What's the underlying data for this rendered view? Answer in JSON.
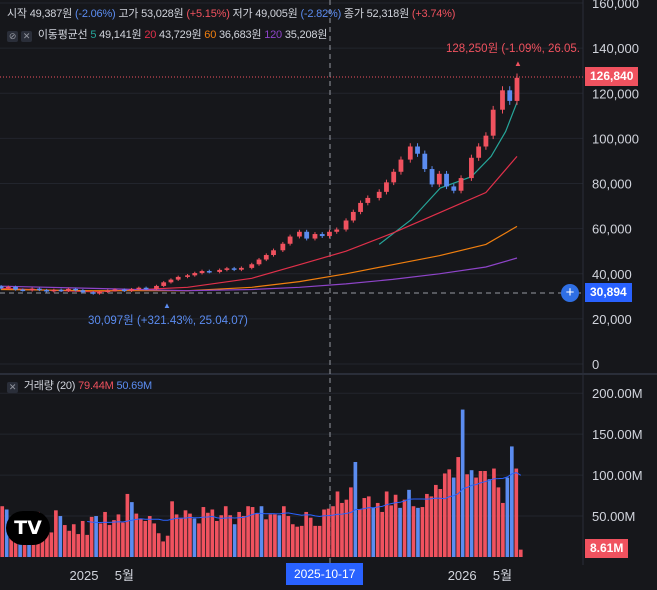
{
  "header": {
    "open_label": "시작",
    "open_value": "49,387원",
    "open_change": "(-2.06%)",
    "high_label": "고가",
    "high_value": "53,028원",
    "high_change": "(+5.15%)",
    "low_label": "저가",
    "low_value": "49,005원",
    "low_change": "(-2.82%)",
    "close_label": "종가",
    "close_value": "52,318원",
    "close_change": "(+3.74%)"
  },
  "ma_legend": {
    "label": "이동평균선",
    "p5": "5",
    "v5": "49,141원",
    "p20": "20",
    "v20": "43,729원",
    "p60": "60",
    "v60": "36,683원",
    "p120": "120",
    "v120": "35,208원"
  },
  "volume_legend": {
    "label": "거래량 (20)",
    "v1": "79.44M",
    "v2": "50.69M"
  },
  "annotations": {
    "high": "128,250원 (-1.09%, 26.05.",
    "low": "30,097원 (+321.43%, 25.04.07)"
  },
  "price_tag": "126,840",
  "crosshair_price": "30,894",
  "volume_tag": "8.61M",
  "crosshair_date": "2025-10-17",
  "logo": "TV",
  "colors": {
    "up": "#f0525f",
    "down": "#5b8cf0",
    "ma5": "#26a69a",
    "ma20": "#e0304a",
    "ma60": "#f07f0f",
    "ma120": "#8e44c9"
  },
  "chart_data": [
    {
      "type": "line",
      "title": "",
      "price_axis_ticks": [
        "0",
        "20,000",
        "40,000",
        "60,000",
        "80,000",
        "100,000",
        "120,000",
        "140,000",
        "160,000"
      ],
      "ylim": [
        0,
        160000
      ],
      "time_axis_ticks": [
        "2025",
        "5월",
        "2026",
        "5월"
      ],
      "series": [
        {
          "name": "이동평균선 5",
          "color": "#26a69a",
          "x": [
            "2026-01-02",
            "2026-02-02",
            "2026-03-02",
            "2026-04-01",
            "2026-04-20",
            "2026-05-04",
            "2026-05-15"
          ],
          "y": [
            53000,
            64000,
            78000,
            83000,
            92000,
            103000,
            116000
          ]
        },
        {
          "name": "이동평균선 20",
          "color": "#e0304a",
          "x": [
            "2025-01-02",
            "2025-04-01",
            "2025-07-01",
            "2025-09-01",
            "2025-10-17",
            "2025-12-01",
            "2026-01-15",
            "2026-03-01",
            "2026-04-15",
            "2026-05-15"
          ],
          "y": [
            33500,
            32000,
            34000,
            38000,
            44000,
            50000,
            58000,
            67000,
            76000,
            92000
          ]
        },
        {
          "name": "이동평균선 60",
          "color": "#f07f0f",
          "x": [
            "2025-01-02",
            "2025-04-01",
            "2025-07-01",
            "2025-09-01",
            "2025-10-17",
            "2025-12-01",
            "2026-01-15",
            "2026-03-01",
            "2026-04-15",
            "2026-05-15"
          ],
          "y": [
            33000,
            32500,
            32500,
            34000,
            36500,
            40000,
            44000,
            48000,
            53000,
            61000
          ]
        },
        {
          "name": "이동평균선 120",
          "color": "#8e44c9",
          "x": [
            "2025-01-02",
            "2025-04-01",
            "2025-07-01",
            "2025-09-01",
            "2025-10-17",
            "2025-12-01",
            "2026-01-15",
            "2026-03-01",
            "2026-04-15",
            "2026-05-15"
          ],
          "y": [
            34500,
            33500,
            32500,
            33000,
            34000,
            35500,
            37500,
            40000,
            43000,
            47000
          ]
        }
      ],
      "candles": [
        {
          "d": "2025-01-02",
          "o": 34500,
          "c": 33500
        },
        {
          "d": "2025-01-09",
          "o": 33500,
          "c": 34200
        },
        {
          "d": "2025-01-16",
          "o": 34200,
          "c": 33000
        },
        {
          "d": "2025-01-23",
          "o": 33000,
          "c": 32600
        },
        {
          "d": "2025-02-01",
          "o": 32600,
          "c": 33400
        },
        {
          "d": "2025-02-08",
          "o": 33400,
          "c": 32800
        },
        {
          "d": "2025-02-15",
          "o": 32800,
          "c": 32200
        },
        {
          "d": "2025-02-22",
          "o": 32200,
          "c": 32900
        },
        {
          "d": "2025-03-01",
          "o": 32900,
          "c": 32400
        },
        {
          "d": "2025-03-08",
          "o": 32400,
          "c": 33300
        },
        {
          "d": "2025-03-15",
          "o": 33300,
          "c": 32700
        },
        {
          "d": "2025-03-22",
          "o": 32700,
          "c": 31800
        },
        {
          "d": "2025-04-01",
          "o": 31800,
          "c": 31200
        },
        {
          "d": "2025-04-07",
          "o": 31200,
          "c": 31900
        },
        {
          "d": "2025-04-15",
          "o": 31900,
          "c": 32600
        },
        {
          "d": "2025-04-22",
          "o": 32600,
          "c": 33000
        },
        {
          "d": "2025-05-01",
          "o": 33000,
          "c": 32400
        },
        {
          "d": "2025-05-08",
          "o": 32400,
          "c": 33200
        },
        {
          "d": "2025-05-15",
          "o": 33200,
          "c": 33800
        },
        {
          "d": "2025-05-22",
          "o": 33800,
          "c": 33300
        },
        {
          "d": "2025-06-01",
          "o": 33300,
          "c": 34600
        },
        {
          "d": "2025-06-08",
          "o": 34600,
          "c": 36200
        },
        {
          "d": "2025-06-15",
          "o": 36200,
          "c": 37400
        },
        {
          "d": "2025-06-22",
          "o": 37400,
          "c": 38600
        },
        {
          "d": "2025-07-01",
          "o": 38600,
          "c": 39300
        },
        {
          "d": "2025-07-08",
          "o": 39300,
          "c": 40300
        },
        {
          "d": "2025-07-15",
          "o": 40300,
          "c": 41200
        },
        {
          "d": "2025-07-22",
          "o": 41200,
          "c": 40800
        },
        {
          "d": "2025-08-01",
          "o": 40800,
          "c": 41700
        },
        {
          "d": "2025-08-08",
          "o": 41700,
          "c": 42400
        },
        {
          "d": "2025-08-15",
          "o": 42400,
          "c": 41800
        },
        {
          "d": "2025-08-22",
          "o": 41800,
          "c": 42600
        },
        {
          "d": "2025-09-01",
          "o": 42600,
          "c": 44200
        },
        {
          "d": "2025-09-08",
          "o": 44200,
          "c": 46300
        },
        {
          "d": "2025-09-15",
          "o": 46300,
          "c": 48300
        },
        {
          "d": "2025-09-22",
          "o": 48300,
          "c": 50400
        },
        {
          "d": "2025-10-01",
          "o": 50400,
          "c": 53300
        },
        {
          "d": "2025-10-08",
          "o": 53300,
          "c": 56500
        },
        {
          "d": "2025-10-17",
          "o": 56500,
          "c": 58600
        },
        {
          "d": "2025-10-24",
          "o": 58600,
          "c": 55600
        },
        {
          "d": "2025-11-01",
          "o": 55600,
          "c": 57600
        },
        {
          "d": "2025-11-08",
          "o": 57600,
          "c": 56700
        },
        {
          "d": "2025-11-15",
          "o": 56700,
          "c": 58600
        },
        {
          "d": "2025-11-22",
          "o": 58600,
          "c": 59600
        },
        {
          "d": "2025-12-01",
          "o": 59600,
          "c": 63600
        },
        {
          "d": "2025-12-08",
          "o": 63600,
          "c": 67400
        },
        {
          "d": "2025-12-15",
          "o": 67400,
          "c": 71400
        },
        {
          "d": "2025-12-22",
          "o": 71400,
          "c": 73600
        },
        {
          "d": "2026-01-02",
          "o": 73600,
          "c": 76300
        },
        {
          "d": "2026-01-09",
          "o": 76300,
          "c": 80500
        },
        {
          "d": "2026-01-16",
          "o": 80500,
          "c": 85200
        },
        {
          "d": "2026-01-23",
          "o": 85200,
          "c": 90600
        },
        {
          "d": "2026-02-01",
          "o": 90600,
          "c": 96400
        },
        {
          "d": "2026-02-08",
          "o": 96400,
          "c": 93200
        },
        {
          "d": "2026-02-15",
          "o": 93200,
          "c": 86400
        },
        {
          "d": "2026-02-22",
          "o": 86400,
          "c": 79600
        },
        {
          "d": "2026-03-01",
          "o": 79600,
          "c": 84300
        },
        {
          "d": "2026-03-08",
          "o": 84300,
          "c": 78700
        },
        {
          "d": "2026-03-15",
          "o": 78700,
          "c": 76800
        },
        {
          "d": "2026-03-22",
          "o": 76800,
          "c": 82400
        },
        {
          "d": "2026-04-01",
          "o": 82400,
          "c": 91400
        },
        {
          "d": "2026-04-08",
          "o": 91400,
          "c": 96400
        },
        {
          "d": "2026-04-15",
          "o": 96400,
          "c": 101200
        },
        {
          "d": "2026-04-22",
          "o": 101200,
          "c": 112700
        },
        {
          "d": "2026-05-01",
          "o": 112700,
          "c": 121300
        },
        {
          "d": "2026-05-08",
          "o": 121300,
          "c": 116600
        },
        {
          "d": "2026-05-15",
          "o": 116600,
          "c": 126840
        }
      ],
      "high_marker": 128250,
      "low_marker": 30097,
      "current_price": 126840
    },
    {
      "type": "bar",
      "title": "거래량 (20)",
      "volume_axis_ticks": [
        "50.00M",
        "100.00M",
        "150.00M",
        "200.00M"
      ],
      "ylim": [
        0,
        210000000
      ],
      "volumes": [
        {
          "v": 62,
          "u": true
        },
        {
          "v": 58,
          "u": false
        },
        {
          "v": 44,
          "u": true
        },
        {
          "v": 50,
          "u": true
        },
        {
          "v": 40,
          "u": false
        },
        {
          "v": 38,
          "u": true
        },
        {
          "v": 45,
          "u": false
        },
        {
          "v": 48,
          "u": true
        },
        {
          "v": 55,
          "u": true
        },
        {
          "v": 46,
          "u": true
        },
        {
          "v": 33,
          "u": true
        },
        {
          "v": 30,
          "u": true
        },
        {
          "v": 57,
          "u": true
        },
        {
          "v": 50,
          "u": false
        },
        {
          "v": 39,
          "u": true
        },
        {
          "v": 32,
          "u": true
        },
        {
          "v": 40,
          "u": true
        },
        {
          "v": 28,
          "u": true
        },
        {
          "v": 44,
          "u": true
        },
        {
          "v": 27,
          "u": true
        },
        {
          "v": 49,
          "u": true
        },
        {
          "v": 50,
          "u": false
        },
        {
          "v": 41,
          "u": true
        },
        {
          "v": 55,
          "u": true
        },
        {
          "v": 39,
          "u": true
        },
        {
          "v": 45,
          "u": true
        },
        {
          "v": 52,
          "u": true
        },
        {
          "v": 42,
          "u": true
        },
        {
          "v": 77,
          "u": true
        },
        {
          "v": 67,
          "u": false
        },
        {
          "v": 53,
          "u": true
        },
        {
          "v": 47,
          "u": true
        },
        {
          "v": 44,
          "u": true
        },
        {
          "v": 50,
          "u": true
        },
        {
          "v": 41,
          "u": true
        },
        {
          "v": 29,
          "u": true
        },
        {
          "v": 19,
          "u": true
        },
        {
          "v": 26,
          "u": true
        },
        {
          "v": 68,
          "u": true
        },
        {
          "v": 52,
          "u": true
        },
        {
          "v": 48,
          "u": true
        },
        {
          "v": 57,
          "u": true
        },
        {
          "v": 53,
          "u": true
        },
        {
          "v": 47,
          "u": false
        },
        {
          "v": 41,
          "u": true
        },
        {
          "v": 61,
          "u": true
        },
        {
          "v": 54,
          "u": true
        },
        {
          "v": 58,
          "u": true
        },
        {
          "v": 44,
          "u": true
        },
        {
          "v": 51,
          "u": true
        },
        {
          "v": 62,
          "u": true
        },
        {
          "v": 51,
          "u": true
        },
        {
          "v": 40,
          "u": false
        },
        {
          "v": 55,
          "u": true
        },
        {
          "v": 50,
          "u": true
        },
        {
          "v": 62,
          "u": true
        },
        {
          "v": 61,
          "u": true
        },
        {
          "v": 53,
          "u": true
        },
        {
          "v": 62,
          "u": false
        },
        {
          "v": 46,
          "u": true
        },
        {
          "v": 52,
          "u": true
        },
        {
          "v": 52,
          "u": true
        },
        {
          "v": 51,
          "u": false
        },
        {
          "v": 62,
          "u": true
        },
        {
          "v": 50,
          "u": true
        },
        {
          "v": 40,
          "u": true
        },
        {
          "v": 37,
          "u": true
        },
        {
          "v": 38,
          "u": true
        },
        {
          "v": 55,
          "u": true
        },
        {
          "v": 48,
          "u": true
        },
        {
          "v": 38,
          "u": true
        },
        {
          "v": 38,
          "u": true
        },
        {
          "v": 58,
          "u": true
        },
        {
          "v": 59,
          "u": true
        },
        {
          "v": 62,
          "u": true
        },
        {
          "v": 80,
          "u": true
        },
        {
          "v": 66,
          "u": true
        },
        {
          "v": 70,
          "u": true
        },
        {
          "v": 85,
          "u": true
        },
        {
          "v": 116,
          "u": false
        },
        {
          "v": 58,
          "u": true
        },
        {
          "v": 72,
          "u": true
        },
        {
          "v": 74,
          "u": true
        },
        {
          "v": 60,
          "u": false
        },
        {
          "v": 66,
          "u": true
        },
        {
          "v": 55,
          "u": true
        },
        {
          "v": 80,
          "u": true
        },
        {
          "v": 63,
          "u": true
        },
        {
          "v": 76,
          "u": true
        },
        {
          "v": 60,
          "u": false
        },
        {
          "v": 70,
          "u": true
        },
        {
          "v": 82,
          "u": false
        },
        {
          "v": 62,
          "u": true
        },
        {
          "v": 60,
          "u": false
        },
        {
          "v": 61,
          "u": true
        },
        {
          "v": 77,
          "u": true
        },
        {
          "v": 74,
          "u": true
        },
        {
          "v": 88,
          "u": true
        },
        {
          "v": 83,
          "u": true
        },
        {
          "v": 102,
          "u": true
        },
        {
          "v": 107,
          "u": true
        },
        {
          "v": 97,
          "u": false
        },
        {
          "v": 122,
          "u": true
        },
        {
          "v": 180,
          "u": false
        },
        {
          "v": 101,
          "u": true
        },
        {
          "v": 106,
          "u": false
        },
        {
          "v": 97,
          "u": true
        },
        {
          "v": 105,
          "u": true
        },
        {
          "v": 105,
          "u": true
        },
        {
          "v": 95,
          "u": false
        },
        {
          "v": 108,
          "u": true
        },
        {
          "v": 85,
          "u": true
        },
        {
          "v": 66,
          "u": true
        },
        {
          "v": 97,
          "u": false
        },
        {
          "v": 135,
          "u": false
        },
        {
          "v": 108,
          "u": true
        },
        {
          "v": 9,
          "u": true
        }
      ],
      "volume_unit": "M"
    }
  ]
}
